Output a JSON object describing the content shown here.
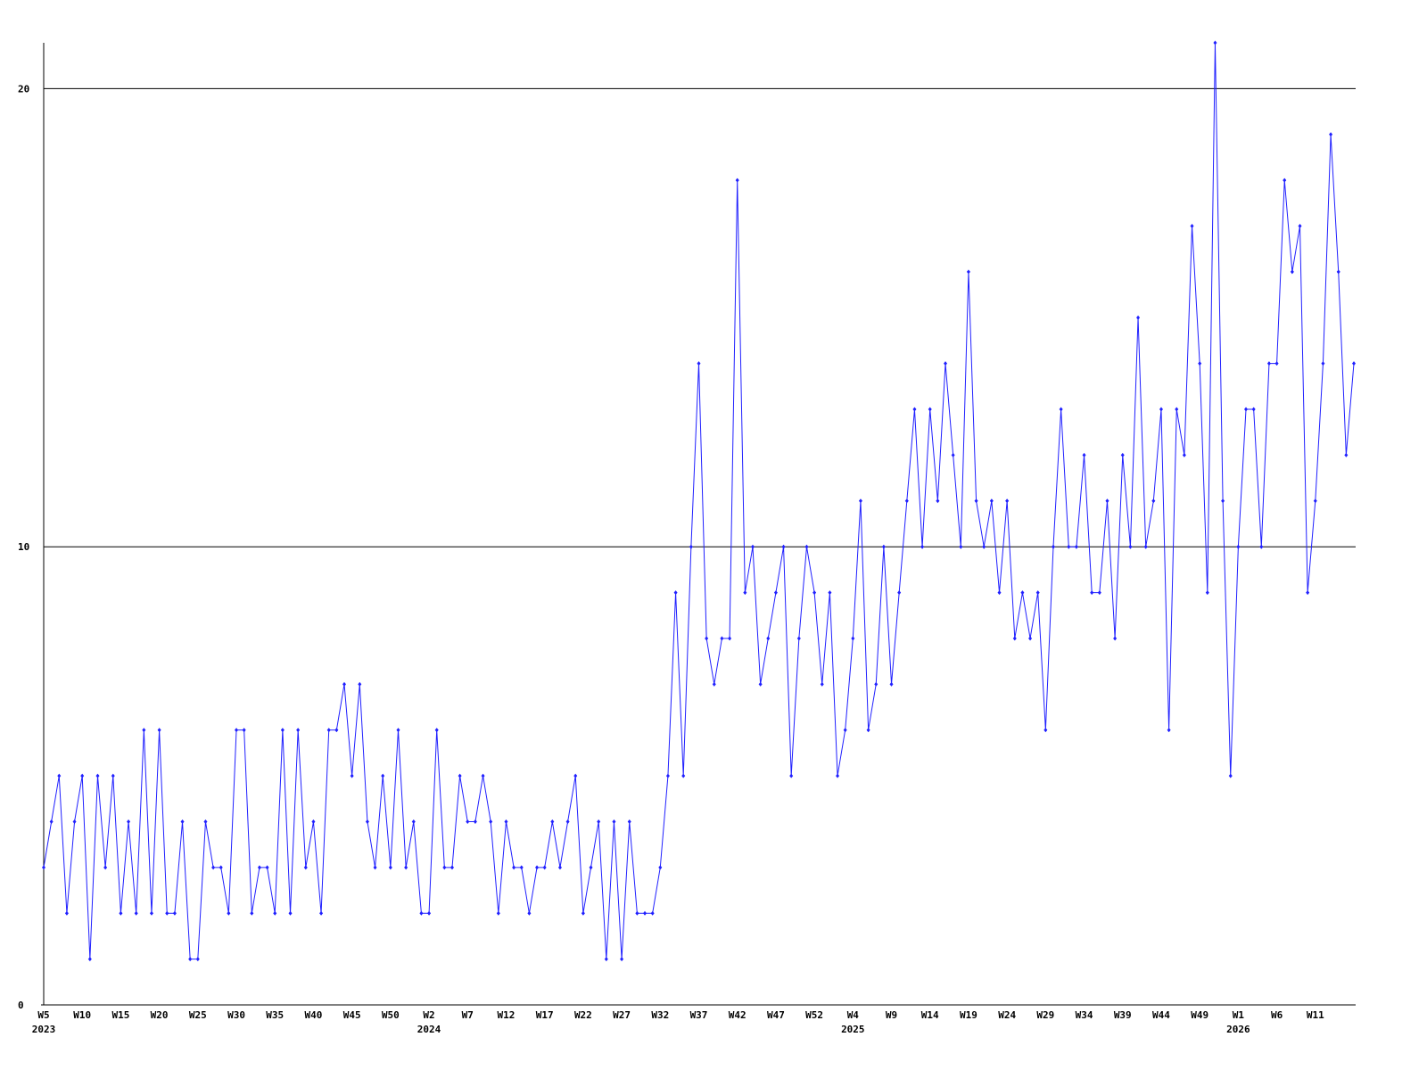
{
  "chart_data": {
    "type": "line",
    "categories": [
      "W5\n2023",
      null,
      null,
      null,
      null,
      "W10",
      null,
      null,
      null,
      null,
      "W15",
      null,
      null,
      null,
      null,
      "W20",
      null,
      null,
      null,
      null,
      "W25",
      null,
      null,
      null,
      null,
      "W30",
      null,
      null,
      null,
      null,
      "W35",
      null,
      null,
      null,
      null,
      "W40",
      null,
      null,
      null,
      null,
      "W45",
      null,
      null,
      null,
      null,
      "W50",
      null,
      null,
      null,
      null,
      "W2\n2024",
      null,
      null,
      null,
      null,
      "W7",
      null,
      null,
      null,
      null,
      "W12",
      null,
      null,
      null,
      null,
      "W17",
      null,
      null,
      null,
      null,
      "W22",
      null,
      null,
      null,
      null,
      "W27",
      null,
      null,
      null,
      null,
      "W32",
      null,
      null,
      null,
      null,
      "W37",
      null,
      null,
      null,
      null,
      "W42",
      null,
      null,
      null,
      null,
      "W47",
      null,
      null,
      null,
      null,
      "W52",
      null,
      null,
      null,
      null,
      "W4\n2025",
      null,
      null,
      null,
      null,
      "W9",
      null,
      null,
      null,
      null,
      "W14",
      null,
      null,
      null,
      null,
      "W19",
      null,
      null,
      null,
      null,
      "W24",
      null,
      null,
      null,
      null,
      "W29",
      null,
      null,
      null,
      null,
      "W34",
      null,
      null,
      null,
      null,
      "W39",
      null,
      null,
      null,
      null,
      "W44",
      null,
      null,
      null,
      null,
      "W49",
      null,
      null,
      null,
      null,
      "W1\n2026",
      null,
      null,
      null,
      null,
      "W6",
      null,
      null,
      null,
      null,
      "W11",
      null,
      null,
      null,
      null,
      null
    ],
    "values": [
      3,
      4,
      5,
      2,
      4,
      5,
      1,
      5,
      3,
      5,
      2,
      4,
      2,
      6,
      2,
      6,
      2,
      2,
      4,
      1,
      1,
      4,
      3,
      3,
      2,
      6,
      6,
      2,
      3,
      3,
      2,
      6,
      2,
      6,
      3,
      4,
      2,
      6,
      6,
      7,
      5,
      7,
      4,
      3,
      5,
      3,
      6,
      3,
      4,
      2,
      2,
      6,
      3,
      3,
      5,
      4,
      4,
      5,
      4,
      2,
      4,
      3,
      3,
      2,
      3,
      3,
      4,
      3,
      4,
      5,
      2,
      3,
      4,
      1,
      4,
      1,
      4,
      2,
      2,
      2,
      3,
      5,
      9,
      5,
      10,
      14,
      8,
      7,
      8,
      8,
      18,
      9,
      10,
      7,
      8,
      9,
      10,
      5,
      8,
      10,
      9,
      7,
      9,
      5,
      6,
      8,
      11,
      6,
      7,
      10,
      7,
      9,
      11,
      13,
      10,
      13,
      11,
      14,
      12,
      10,
      16,
      11,
      10,
      11,
      9,
      11,
      8,
      9,
      8,
      9,
      6,
      10,
      13,
      10,
      10,
      12,
      9,
      9,
      11,
      8,
      12,
      10,
      15,
      10,
      11,
      13,
      6,
      13,
      12,
      17,
      14,
      9,
      21,
      11,
      5,
      10,
      13,
      13,
      10,
      14,
      14,
      18,
      16,
      17,
      9,
      11,
      14,
      19,
      16,
      12,
      14
    ],
    "color": "#2020ff",
    "ylim": [
      0,
      21
    ],
    "yticks": [
      0,
      10,
      20
    ],
    "grid": true
  }
}
